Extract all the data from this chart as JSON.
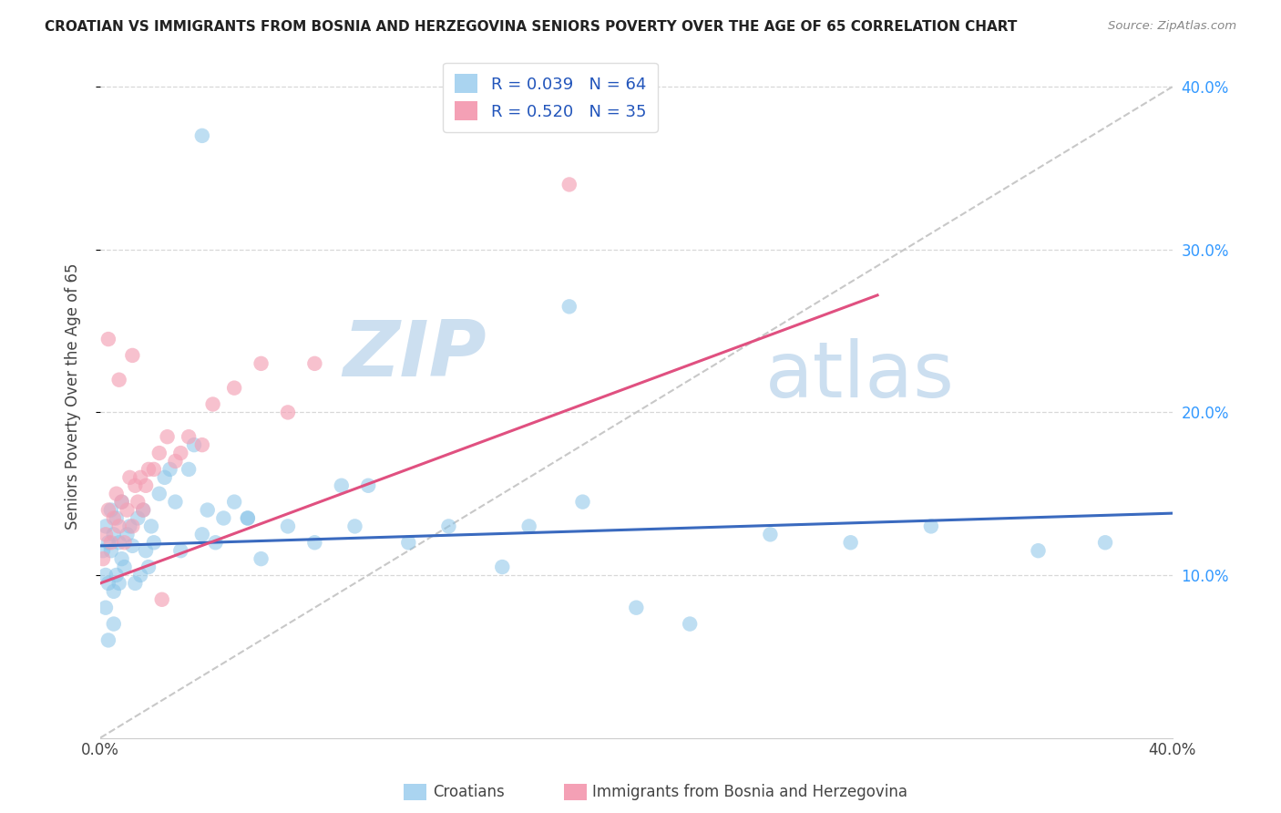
{
  "title": "CROATIAN VS IMMIGRANTS FROM BOSNIA AND HERZEGOVINA SENIORS POVERTY OVER THE AGE OF 65 CORRELATION CHART",
  "source": "Source: ZipAtlas.com",
  "ylabel": "Seniors Poverty Over the Age of 65",
  "xlim": [
    0.0,
    0.4
  ],
  "ylim": [
    0.0,
    0.42
  ],
  "yticks": [
    0.1,
    0.2,
    0.3,
    0.4
  ],
  "right_ytick_labels": [
    "10.0%",
    "20.0%",
    "30.0%",
    "40.0%"
  ],
  "croatian_scatter_color": "#89c4e8",
  "bosnian_scatter_color": "#f4a0b5",
  "trend_croatian_color": "#3a6abf",
  "trend_bosnian_color": "#e05080",
  "trend_diagonal_color": "#c8c8c8",
  "watermark_color": "#ccdff0",
  "grid_color": "#d8d8d8",
  "legend_box_cro": "#aad4f0",
  "legend_box_bos": "#f4a0b5",
  "cro_x": [
    0.001,
    0.002,
    0.002,
    0.003,
    0.003,
    0.004,
    0.004,
    0.005,
    0.005,
    0.006,
    0.006,
    0.007,
    0.007,
    0.008,
    0.008,
    0.009,
    0.01,
    0.011,
    0.012,
    0.013,
    0.014,
    0.015,
    0.016,
    0.017,
    0.018,
    0.019,
    0.02,
    0.022,
    0.024,
    0.026,
    0.028,
    0.03,
    0.033,
    0.035,
    0.038,
    0.04,
    0.043,
    0.046,
    0.05,
    0.055,
    0.06,
    0.07,
    0.08,
    0.095,
    0.1,
    0.115,
    0.13,
    0.15,
    0.16,
    0.18,
    0.2,
    0.22,
    0.25,
    0.28,
    0.31,
    0.35,
    0.375,
    0.175,
    0.09,
    0.055,
    0.038,
    0.003,
    0.005,
    0.002
  ],
  "cro_y": [
    0.115,
    0.1,
    0.13,
    0.095,
    0.12,
    0.115,
    0.14,
    0.09,
    0.125,
    0.1,
    0.135,
    0.095,
    0.12,
    0.11,
    0.145,
    0.105,
    0.125,
    0.13,
    0.118,
    0.095,
    0.135,
    0.1,
    0.14,
    0.115,
    0.105,
    0.13,
    0.12,
    0.15,
    0.16,
    0.165,
    0.145,
    0.115,
    0.165,
    0.18,
    0.125,
    0.14,
    0.12,
    0.135,
    0.145,
    0.135,
    0.11,
    0.13,
    0.12,
    0.13,
    0.155,
    0.12,
    0.13,
    0.105,
    0.13,
    0.145,
    0.08,
    0.07,
    0.125,
    0.12,
    0.13,
    0.115,
    0.12,
    0.265,
    0.155,
    0.135,
    0.37,
    0.06,
    0.07,
    0.08
  ],
  "bos_x": [
    0.001,
    0.002,
    0.003,
    0.004,
    0.005,
    0.006,
    0.007,
    0.008,
    0.009,
    0.01,
    0.011,
    0.012,
    0.013,
    0.014,
    0.015,
    0.016,
    0.017,
    0.018,
    0.02,
    0.022,
    0.025,
    0.028,
    0.03,
    0.033,
    0.038,
    0.042,
    0.05,
    0.06,
    0.07,
    0.08,
    0.003,
    0.007,
    0.012,
    0.175,
    0.023
  ],
  "bos_y": [
    0.11,
    0.125,
    0.14,
    0.12,
    0.135,
    0.15,
    0.13,
    0.145,
    0.12,
    0.14,
    0.16,
    0.13,
    0.155,
    0.145,
    0.16,
    0.14,
    0.155,
    0.165,
    0.165,
    0.175,
    0.185,
    0.17,
    0.175,
    0.185,
    0.18,
    0.205,
    0.215,
    0.23,
    0.2,
    0.23,
    0.245,
    0.22,
    0.235,
    0.34,
    0.085
  ],
  "cro_trend_x0": 0.0,
  "cro_trend_x1": 0.4,
  "cro_trend_y0": 0.118,
  "cro_trend_y1": 0.138,
  "bos_trend_x0": 0.0,
  "bos_trend_x1": 0.29,
  "bos_trend_y0": 0.095,
  "bos_trend_y1": 0.272
}
